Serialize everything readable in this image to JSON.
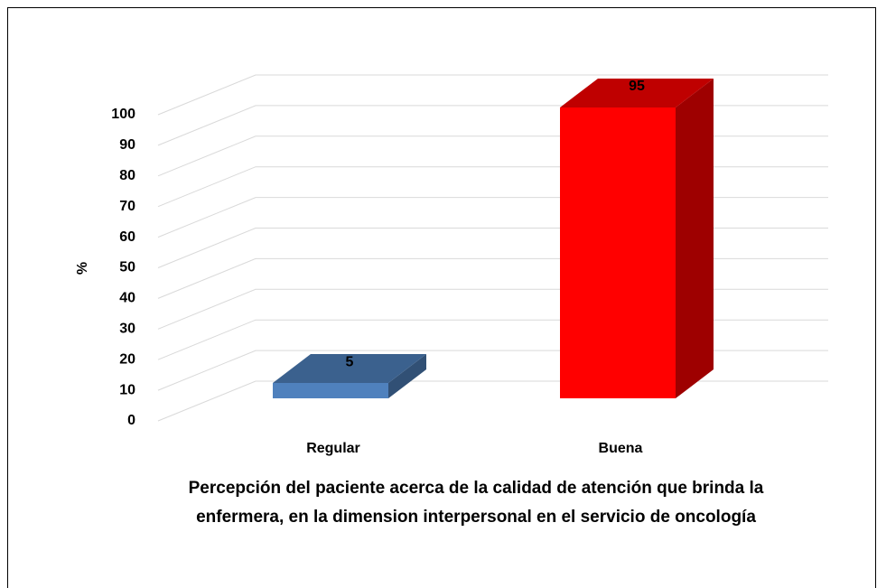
{
  "chart_data": {
    "type": "bar3d",
    "title": "Percepción del paciente acerca de la calidad de atención que brinda la enfermera, en la dimension interpersonal en el servicio de oncología",
    "y_label": "%",
    "categories": [
      "Regular",
      "Buena"
    ],
    "values": [
      5,
      95
    ],
    "colors": [
      "#4f81bd",
      "#ff0000"
    ],
    "ylim": [
      0,
      100
    ],
    "yticks": [
      0,
      10,
      20,
      30,
      40,
      50,
      60,
      70,
      80,
      90,
      100
    ],
    "grid": true
  }
}
